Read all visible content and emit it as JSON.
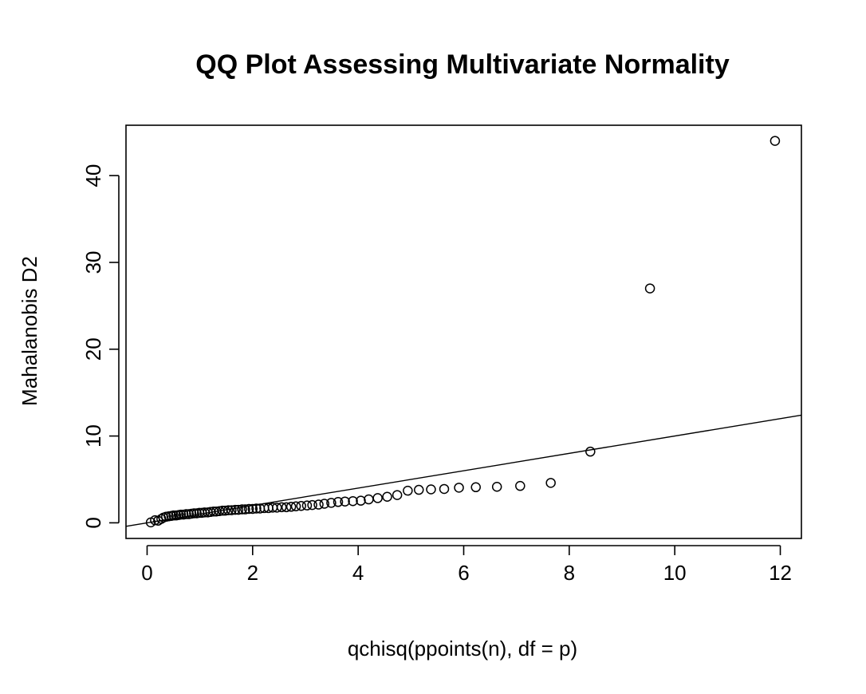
{
  "chart_data": {
    "type": "scatter",
    "title": "QQ Plot Assessing Multivariate Normality",
    "xlabel": "qchisq(ppoints(n), df = p)",
    "ylabel": "Mahalanobis D2",
    "xlim": [
      -0.4,
      12.4
    ],
    "ylim": [
      -1.8,
      45.8
    ],
    "x_ticks": [
      0,
      2,
      4,
      6,
      8,
      10,
      12
    ],
    "y_ticks": [
      0,
      10,
      20,
      30,
      40
    ],
    "grid": false,
    "legend": "none",
    "points": {
      "x": [
        0.07,
        0.15,
        0.21,
        0.27,
        0.31,
        0.36,
        0.41,
        0.46,
        0.5,
        0.55,
        0.6,
        0.64,
        0.69,
        0.74,
        0.79,
        0.84,
        0.89,
        0.94,
        0.99,
        1.04,
        1.09,
        1.15,
        1.2,
        1.26,
        1.31,
        1.37,
        1.43,
        1.48,
        1.54,
        1.6,
        1.67,
        1.73,
        1.8,
        1.86,
        1.93,
        2.0,
        2.07,
        2.14,
        2.22,
        2.3,
        2.38,
        2.46,
        2.55,
        2.64,
        2.73,
        2.82,
        2.92,
        3.03,
        3.13,
        3.25,
        3.36,
        3.49,
        3.62,
        3.75,
        3.9,
        4.05,
        4.2,
        4.37,
        4.55,
        4.74,
        4.94,
        5.15,
        5.38,
        5.63,
        5.91,
        6.23,
        6.63,
        7.07,
        7.65,
        8.4,
        9.53,
        11.9
      ],
      "y": [
        0.05,
        0.3,
        0.25,
        0.45,
        0.6,
        0.7,
        0.75,
        0.8,
        0.85,
        0.85,
        0.9,
        0.95,
        0.95,
        1.0,
        1.0,
        1.05,
        1.1,
        1.1,
        1.15,
        1.15,
        1.2,
        1.2,
        1.25,
        1.3,
        1.3,
        1.35,
        1.4,
        1.4,
        1.45,
        1.45,
        1.5,
        1.5,
        1.55,
        1.55,
        1.6,
        1.6,
        1.65,
        1.65,
        1.7,
        1.7,
        1.75,
        1.75,
        1.8,
        1.8,
        1.85,
        1.9,
        1.95,
        2.0,
        2.05,
        2.1,
        2.2,
        2.3,
        2.4,
        2.45,
        2.5,
        2.55,
        2.7,
        2.85,
        3.0,
        3.2,
        3.7,
        3.8,
        3.85,
        3.9,
        4.05,
        4.1,
        4.15,
        4.25,
        4.6,
        8.2,
        27.0,
        44.0
      ]
    },
    "reference_line": {
      "intercept": 0.0,
      "slope": 1.0
    }
  }
}
